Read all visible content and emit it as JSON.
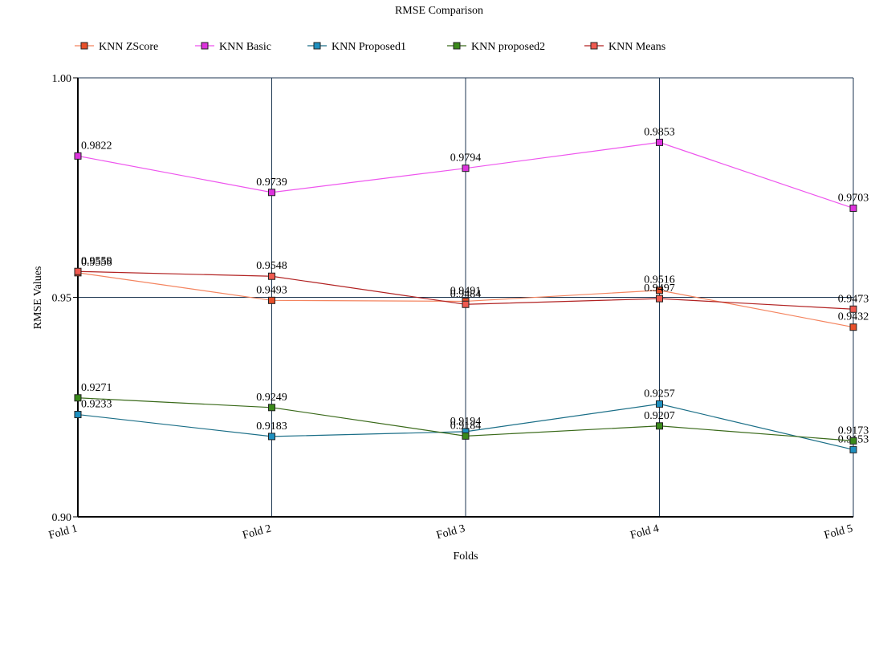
{
  "chart_data": {
    "type": "line",
    "title": "RMSE Comparison",
    "xlabel": "Folds",
    "ylabel": "RMSE Values",
    "categories": [
      "Fold 1",
      "Fold 2",
      "Fold 3",
      "Fold 4",
      "Fold 5"
    ],
    "ylim": [
      0.9,
      1.0
    ],
    "yticks": [
      "0.90",
      "0.95",
      "1.00"
    ],
    "grid": true,
    "legend_position": "top",
    "series": [
      {
        "name": "KNN ZScore",
        "line_color": "#f4845f",
        "marker_color": "#e8502a",
        "values": [
          0.9556,
          0.9493,
          0.9491,
          0.9516,
          0.9432
        ],
        "labels": [
          "0.9556",
          "0.9493",
          "0.9491",
          "0.9516",
          "0.9432"
        ]
      },
      {
        "name": "KNN Basic",
        "line_color": "#ee55ee",
        "marker_color": "#dd33dd",
        "values": [
          0.9822,
          0.9739,
          0.9794,
          0.9853,
          0.9703
        ],
        "labels": [
          "0.9822",
          "0.9739",
          "0.9794",
          "0.9853",
          "0.9703"
        ]
      },
      {
        "name": "KNN Proposed1",
        "line_color": "#1a6e87",
        "marker_color": "#1e90c0",
        "values": [
          0.9233,
          0.9183,
          0.9194,
          0.9257,
          0.9153
        ],
        "labels": [
          "0.9233",
          "0.9183",
          "0.9194",
          "0.9257",
          "0.9153"
        ]
      },
      {
        "name": "KNN proposed2",
        "line_color": "#3a6a1a",
        "marker_color": "#3a8a1a",
        "values": [
          0.9271,
          0.9249,
          0.9184,
          0.9207,
          0.9173
        ],
        "labels": [
          "0.9271",
          "0.9249",
          "0.9184",
          "0.9207",
          "0.9173"
        ]
      },
      {
        "name": "KNN Means",
        "line_color": "#b22222",
        "marker_color": "#f05a50",
        "values": [
          0.9559,
          0.9548,
          0.9484,
          0.9497,
          0.9473
        ],
        "labels": [
          "0.9559",
          "0.9548",
          "0.9484",
          "0.9497",
          "0.9473"
        ]
      }
    ]
  },
  "colors": {
    "grid": "#1c3550",
    "axis": "#000000"
  }
}
